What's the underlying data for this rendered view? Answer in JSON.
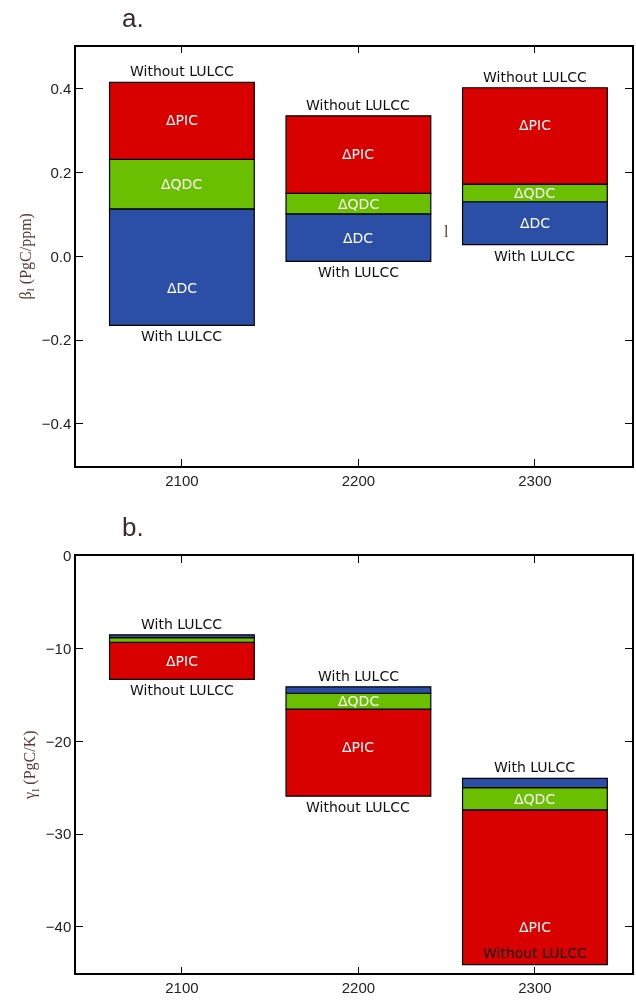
{
  "chart_data": [
    {
      "type": "bar",
      "title": "a.",
      "ylabel": "β$_{l}$ (PgC/ppm)",
      "categories": [
        "2100",
        "2200",
        "2300"
      ],
      "series": [
        {
          "color": "#2b4ea6",
          "base": [
            -0.165,
            -0.012,
            0.028
          ],
          "values": [
            0.278,
            0.113,
            0.102
          ]
        },
        {
          "color": "#6abf00",
          "base": [
            0.113,
            0.101,
            0.13
          ],
          "values": [
            0.118,
            0.049,
            0.042
          ]
        },
        {
          "color": "#d90000",
          "base": [
            0.231,
            0.15,
            0.172
          ],
          "values": [
            0.184,
            0.185,
            0.23
          ]
        }
      ],
      "ylim": [
        -0.5,
        0.5
      ],
      "yticks": [
        {
          "value": -0.4,
          "label": "−0.4"
        },
        {
          "value": -0.2,
          "label": "−0.2"
        },
        {
          "value": 0.0,
          "label": "0.0"
        },
        {
          "value": 0.2,
          "label": "0.2"
        },
        {
          "value": 0.4,
          "label": "0.4"
        }
      ],
      "annotations": [
        {
          "text": "Without LULCC",
          "x": "2100",
          "y": 0.415
        },
        {
          "text": "With LULCC",
          "x": "2100",
          "y": -0.165
        },
        {
          "text": "Without LULCC",
          "x": "2200",
          "y": 0.335
        },
        {
          "text": "With LULCC",
          "x": "2200",
          "y": -0.012
        },
        {
          "text": "Without LULCC",
          "x": "2300",
          "y": 0.402
        },
        {
          "text": "With LULCC",
          "x": "2300",
          "y": 0.028
        },
        {
          "text": "ΔPIC",
          "x": "2100",
          "y": 0.415
        },
        {
          "text": "ΔQDC",
          "x": "2100",
          "y": 0.231
        },
        {
          "text": "ΔDC",
          "x": "2100",
          "y": -0.165
        },
        {
          "text": "ΔPIC",
          "x": "2200",
          "y": 0.335
        },
        {
          "text": "ΔQDC",
          "x": "2200",
          "y": 0.15
        },
        {
          "text": "ΔDC",
          "x": "2200",
          "y": 0.101
        },
        {
          "text": "ΔPIC",
          "x": "2300",
          "y": 0.402
        },
        {
          "text": "ΔQDC",
          "x": "2300",
          "y": 0.172
        },
        {
          "text": "ΔDC",
          "x": "2300",
          "y": 0.13
        },
        "l"
      ]
    },
    {
      "type": "bar",
      "title": "b.",
      "ylabel": "γ$_{l}$ (PgC/K)",
      "categories": [
        "2100",
        "2200",
        "2300"
      ],
      "series": [
        {
          "color": "#d90000",
          "base": [
            -13.3,
            -25.9,
            -44.07
          ],
          "values": [
            4.0,
            9.4,
            16.7
          ]
        },
        {
          "color": "#6abf00",
          "base": [
            -9.3,
            -16.5,
            -27.37
          ],
          "values": [
            0.5,
            1.7,
            2.4
          ]
        },
        {
          "color": "#2b4ea6",
          "base": [
            -8.8,
            -14.8,
            -24.97
          ],
          "values": [
            0.3,
            0.7,
            1.0
          ]
        }
      ],
      "ylim": [
        -45,
        0
      ],
      "yticks": [
        {
          "value": -40,
          "label": "−40"
        },
        {
          "value": -30,
          "label": "−30"
        },
        {
          "value": -20,
          "label": "−20"
        },
        {
          "value": -10,
          "label": "−10"
        },
        0
      ],
      "annotations": [
        {
          "text": "With LULCC",
          "x": "2100",
          "y": -8.5
        },
        {
          "text": "Without LULCC",
          "x": "2100",
          "y": -13.3
        },
        {
          "text": "ΔPIC",
          "x": "2100",
          "y": -9.3
        },
        {
          "text": "With LULCC",
          "x": "2200",
          "y": -14.1
        },
        {
          "text": "ΔQDC",
          "x": "2200",
          "y": -14.8
        },
        {
          "text": "ΔPIC",
          "x": "2200",
          "y": -16.5
        },
        {
          "text": "Without LULCC",
          "x": "2200",
          "y": -25.9
        },
        {
          "text": "With LULCC",
          "x": "2300",
          "y": -23.97
        },
        {
          "text": "ΔQDC",
          "x": "2300",
          "y": -24.97
        },
        {
          "text": "ΔPIC",
          "x": "2300",
          "y": -44.07
        },
        {
          "text": "Without LULCC",
          "x": "2300",
          "y": -44.07
        }
      ]
    }
  ]
}
